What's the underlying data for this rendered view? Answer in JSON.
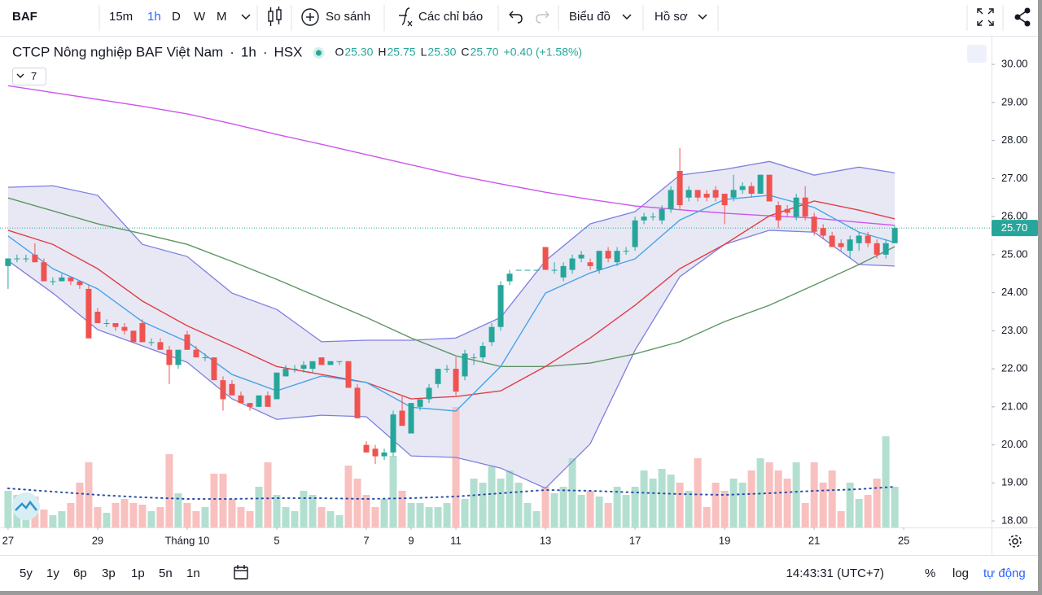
{
  "toolbar": {
    "symbol": "BAF",
    "intervals": [
      "15m",
      "1h",
      "D",
      "W",
      "M"
    ],
    "compare": "So sánh",
    "indicators": "Các chỉ báo",
    "chart_menu": "Biểu đồ",
    "profile_menu": "Hồ sơ"
  },
  "header": {
    "name": "CTCP Nông nghiệp BAF Việt Nam",
    "separator": "·",
    "interval": "1h",
    "exchange": "HSX",
    "legend": [
      {
        "key": "O",
        "value": "25.30"
      },
      {
        "key": "H",
        "value": "25.75"
      },
      {
        "key": "L",
        "value": "25.30"
      },
      {
        "key": "C",
        "value": "25.70"
      }
    ],
    "change": "+0.40 (+1.58%)",
    "indicator_count": "7"
  },
  "chart_data": {
    "type": "candlestick",
    "up_color": "#26a69a",
    "down_color": "#ef5350",
    "up_volume_color": "#b3dfd1",
    "down_volume_color": "#f8c0bf",
    "grid": false,
    "log": false,
    "xlim": [
      -0.9,
      109.8
    ],
    "ylim": [
      17.83,
      30.73
    ],
    "vlim": [
      0,
      160
    ],
    "yticks": [
      {
        "value": 18,
        "label": "18.00"
      },
      {
        "value": 19,
        "label": "19.00"
      },
      {
        "value": 20,
        "label": "20.00"
      },
      {
        "value": 21,
        "label": "21.00"
      },
      {
        "value": 22,
        "label": "22.00"
      },
      {
        "value": 23,
        "label": "23.00"
      },
      {
        "value": 24,
        "label": "24.00"
      },
      {
        "value": 25,
        "label": "25.00"
      },
      {
        "value": 26,
        "label": "26.00"
      },
      {
        "value": 27,
        "label": "27.00"
      },
      {
        "value": 28,
        "label": "28.00"
      },
      {
        "value": 29,
        "label": "29.00"
      },
      {
        "value": 30,
        "label": "30.00"
      }
    ],
    "xticks": [
      {
        "value": 0,
        "label": "27"
      },
      {
        "value": 10,
        "label": "29"
      },
      {
        "value": 20,
        "label": "Tháng 10"
      },
      {
        "value": 30,
        "label": "5"
      },
      {
        "value": 40,
        "label": "7"
      },
      {
        "value": 45,
        "label": "9"
      },
      {
        "value": 50,
        "label": "11"
      },
      {
        "value": 60,
        "label": "13"
      },
      {
        "value": 70,
        "label": "17"
      },
      {
        "value": 80,
        "label": "19"
      },
      {
        "value": 90,
        "label": "21"
      },
      {
        "value": 100,
        "label": "25"
      }
    ],
    "ohlc": [
      [
        24.7,
        24.9,
        24.1,
        24.9
      ],
      [
        24.9,
        25.0,
        24.8,
        24.9
      ],
      [
        24.9,
        25.0,
        24.8,
        24.9
      ],
      [
        25.0,
        25.3,
        24.8,
        24.8
      ],
      [
        24.8,
        24.9,
        24.3,
        24.3
      ],
      [
        24.3,
        24.4,
        24.2,
        24.3
      ],
      [
        24.3,
        24.5,
        24.3,
        24.4
      ],
      [
        24.4,
        24.4,
        24.2,
        24.3
      ],
      [
        24.3,
        24.3,
        24.1,
        24.2
      ],
      [
        24.1,
        24.2,
        22.8,
        22.8
      ],
      [
        23.5,
        23.6,
        23.2,
        23.2
      ],
      [
        23.2,
        23.3,
        23.1,
        23.2
      ],
      [
        23.2,
        23.2,
        23.0,
        23.1
      ],
      [
        23.1,
        23.2,
        22.9,
        23.0
      ],
      [
        23.0,
        23.0,
        22.7,
        22.7
      ],
      [
        23.2,
        23.3,
        22.7,
        22.7
      ],
      [
        22.7,
        22.8,
        22.6,
        22.7
      ],
      [
        22.7,
        22.8,
        22.5,
        22.5
      ],
      [
        22.5,
        22.6,
        21.6,
        22.1
      ],
      [
        22.1,
        22.5,
        22.0,
        22.5
      ],
      [
        22.9,
        23.0,
        22.5,
        22.5
      ],
      [
        22.5,
        22.6,
        22.3,
        22.3
      ],
      [
        22.3,
        22.4,
        22.2,
        22.3
      ],
      [
        22.3,
        22.3,
        21.7,
        21.7
      ],
      [
        21.7,
        21.8,
        20.9,
        21.2
      ],
      [
        21.6,
        21.7,
        21.3,
        21.3
      ],
      [
        21.3,
        21.4,
        21.1,
        21.1
      ],
      [
        21.1,
        21.1,
        20.9,
        21.0
      ],
      [
        21.0,
        21.3,
        21.0,
        21.3
      ],
      [
        21.3,
        21.4,
        21.0,
        21.0
      ],
      [
        21.2,
        21.9,
        21.2,
        21.9
      ],
      [
        21.8,
        22.1,
        21.8,
        22.0
      ],
      [
        22.0,
        22.1,
        21.9,
        22.0
      ],
      [
        22.0,
        22.2,
        21.9,
        22.1
      ],
      [
        22.0,
        22.2,
        21.9,
        22.2
      ],
      [
        22.3,
        22.3,
        22.1,
        22.1
      ],
      [
        22.1,
        22.2,
        22.1,
        22.2
      ],
      [
        22.2,
        22.2,
        22.1,
        22.2
      ],
      [
        22.2,
        22.2,
        21.5,
        21.5
      ],
      [
        21.5,
        21.6,
        20.7,
        20.7
      ],
      [
        20.0,
        20.1,
        19.8,
        19.8
      ],
      [
        19.9,
        20.0,
        19.5,
        19.7
      ],
      [
        19.7,
        19.9,
        19.6,
        19.8
      ],
      [
        19.8,
        20.9,
        19.7,
        20.8
      ],
      [
        20.9,
        21.3,
        20.5,
        20.5
      ],
      [
        20.3,
        21.1,
        20.3,
        21.1
      ],
      [
        21.0,
        21.2,
        20.9,
        21.2
      ],
      [
        21.2,
        21.6,
        21.1,
        21.5
      ],
      [
        21.6,
        22.0,
        21.5,
        22.0
      ],
      [
        22.0,
        22.1,
        21.9,
        22.0
      ],
      [
        22.0,
        22.3,
        21.3,
        21.4
      ],
      [
        21.8,
        22.5,
        21.7,
        22.4
      ],
      [
        22.3,
        22.4,
        22.1,
        22.3
      ],
      [
        22.3,
        22.7,
        22.2,
        22.6
      ],
      [
        22.7,
        23.2,
        22.6,
        23.1
      ],
      [
        23.1,
        24.3,
        23.0,
        24.2
      ],
      [
        24.3,
        24.6,
        24.2,
        24.5
      ],
      [
        24.6,
        24.6,
        24.6,
        24.6
      ],
      [
        24.6,
        24.6,
        24.6,
        24.6
      ],
      [
        24.6,
        24.6,
        24.6,
        24.6
      ],
      [
        25.2,
        25.2,
        24.6,
        24.6
      ],
      [
        24.6,
        24.8,
        24.5,
        24.6
      ],
      [
        24.4,
        24.8,
        24.3,
        24.7
      ],
      [
        24.6,
        25.0,
        24.5,
        24.9
      ],
      [
        24.9,
        25.1,
        24.8,
        25.0
      ],
      [
        24.8,
        24.9,
        24.6,
        24.7
      ],
      [
        24.6,
        25.1,
        24.5,
        25.1
      ],
      [
        25.1,
        25.2,
        24.8,
        24.9
      ],
      [
        24.8,
        25.2,
        24.7,
        25.1
      ],
      [
        25.1,
        25.2,
        25.0,
        25.1
      ],
      [
        25.2,
        26.0,
        25.1,
        25.9
      ],
      [
        25.9,
        26.1,
        25.8,
        26.0
      ],
      [
        26.0,
        26.1,
        25.9,
        26.0
      ],
      [
        25.9,
        26.3,
        25.8,
        26.2
      ],
      [
        26.2,
        26.8,
        26.1,
        26.7
      ],
      [
        27.2,
        27.8,
        26.2,
        26.3
      ],
      [
        26.5,
        26.8,
        26.4,
        26.7
      ],
      [
        26.7,
        26.7,
        26.4,
        26.5
      ],
      [
        26.6,
        26.7,
        26.4,
        26.5
      ],
      [
        26.7,
        26.8,
        26.4,
        26.5
      ],
      [
        26.6,
        26.6,
        25.8,
        26.3
      ],
      [
        26.5,
        27.1,
        26.4,
        26.7
      ],
      [
        26.7,
        26.9,
        26.6,
        26.8
      ],
      [
        26.8,
        26.9,
        26.5,
        26.6
      ],
      [
        26.6,
        27.1,
        26.6,
        27.1
      ],
      [
        27.1,
        27.1,
        26.4,
        26.4
      ],
      [
        26.3,
        26.4,
        25.7,
        25.9
      ],
      [
        26.2,
        26.3,
        26.0,
        26.1
      ],
      [
        26.0,
        26.6,
        25.9,
        26.5
      ],
      [
        26.5,
        26.8,
        25.9,
        26.0
      ],
      [
        26.0,
        26.1,
        25.5,
        25.6
      ],
      [
        25.7,
        25.8,
        25.4,
        25.5
      ],
      [
        25.5,
        25.6,
        25.2,
        25.2
      ],
      [
        25.3,
        25.4,
        25.1,
        25.2
      ],
      [
        25.1,
        25.5,
        24.9,
        25.4
      ],
      [
        25.3,
        25.6,
        25.1,
        25.5
      ],
      [
        25.5,
        25.6,
        25.2,
        25.3
      ],
      [
        25.3,
        25.4,
        24.9,
        25.0
      ],
      [
        25.0,
        25.4,
        24.9,
        25.3
      ],
      [
        25.3,
        25.75,
        25.3,
        25.7
      ]
    ],
    "volume": [
      45,
      40,
      30,
      38,
      22,
      15,
      20,
      30,
      55,
      80,
      25,
      18,
      30,
      35,
      30,
      28,
      20,
      25,
      90,
      42,
      30,
      20,
      25,
      66,
      66,
      35,
      25,
      20,
      50,
      80,
      40,
      25,
      20,
      45,
      40,
      25,
      20,
      15,
      76,
      60,
      40,
      25,
      35,
      88,
      45,
      30,
      30,
      25,
      25,
      30,
      148,
      35,
      60,
      55,
      75,
      60,
      70,
      55,
      30,
      20,
      50,
      42,
      50,
      85,
      40,
      45,
      38,
      30,
      50,
      40,
      50,
      70,
      60,
      72,
      65,
      55,
      45,
      85,
      25,
      55,
      45,
      60,
      55,
      70,
      85,
      80,
      70,
      60,
      80,
      30,
      80,
      55,
      70,
      20,
      55,
      35,
      40,
      60,
      112,
      50
    ],
    "last_label": "25.70",
    "indicator_x": [
      0,
      5,
      10,
      15,
      20,
      25,
      30,
      35,
      40,
      45,
      50,
      55,
      60,
      65,
      70,
      75,
      80,
      85,
      90,
      95,
      99
    ],
    "indicators": [
      {
        "color": "#cc55ee",
        "values": [
          29.44,
          29.26,
          29.08,
          28.9,
          28.7,
          28.44,
          28.16,
          27.9,
          27.63,
          27.36,
          27.09,
          26.86,
          26.64,
          26.45,
          26.28,
          26.18,
          26.09,
          26.02,
          25.96,
          25.85,
          25.77
        ]
      },
      {
        "color": "#5f9461",
        "values": [
          26.49,
          26.15,
          25.81,
          25.55,
          25.27,
          24.82,
          24.35,
          23.85,
          23.35,
          22.81,
          22.34,
          22.06,
          22.06,
          22.15,
          22.39,
          22.71,
          23.24,
          23.67,
          24.2,
          24.74,
          25.21
        ]
      },
      {
        "color": "#df3f45",
        "values": [
          25.64,
          25.27,
          24.63,
          23.78,
          23.13,
          22.6,
          22.06,
          21.85,
          21.64,
          21.21,
          21.27,
          21.42,
          22.06,
          22.81,
          23.67,
          24.63,
          25.27,
          26.02,
          26.41,
          26.17,
          25.94
        ]
      },
      {
        "color": "#49a3e6",
        "values": [
          25.49,
          24.63,
          24.1,
          23.24,
          22.71,
          21.85,
          21.42,
          21.81,
          21.64,
          20.99,
          20.89,
          22.06,
          23.99,
          24.52,
          24.89,
          25.91,
          26.45,
          26.56,
          26.24,
          25.59,
          25.32
        ]
      }
    ],
    "bands": {
      "color": "#7d7fe0",
      "fill": "rgba(125,127,200,0.18)",
      "upper": [
        26.77,
        26.81,
        26.56,
        25.27,
        24.95,
        23.99,
        23.56,
        22.71,
        22.75,
        22.75,
        22.81,
        23.35,
        24.84,
        25.81,
        26.13,
        27.09,
        27.24,
        27.45,
        27.09,
        27.3,
        27.15
      ],
      "lower": [
        24.84,
        23.99,
        23.03,
        22.6,
        22.17,
        21.21,
        20.67,
        20.78,
        20.74,
        19.71,
        19.67,
        19.39,
        18.86,
        20.03,
        22.49,
        24.42,
        25.27,
        25.64,
        25.59,
        24.74,
        24.7
      ]
    },
    "volume_ma": {
      "color": "#2a4fa8",
      "values": [
        48,
        44,
        40,
        37,
        35,
        35,
        36,
        36,
        35,
        36,
        38,
        42,
        46,
        45,
        43,
        41,
        40,
        42,
        45,
        47,
        50
      ]
    }
  },
  "footer": {
    "ranges": [
      "5y",
      "1y",
      "6p",
      "3p",
      "1p",
      "5n",
      "1n"
    ],
    "time": "14:43:31 (UTC+7)",
    "percent": "%",
    "log": "log",
    "auto": "tự động"
  }
}
